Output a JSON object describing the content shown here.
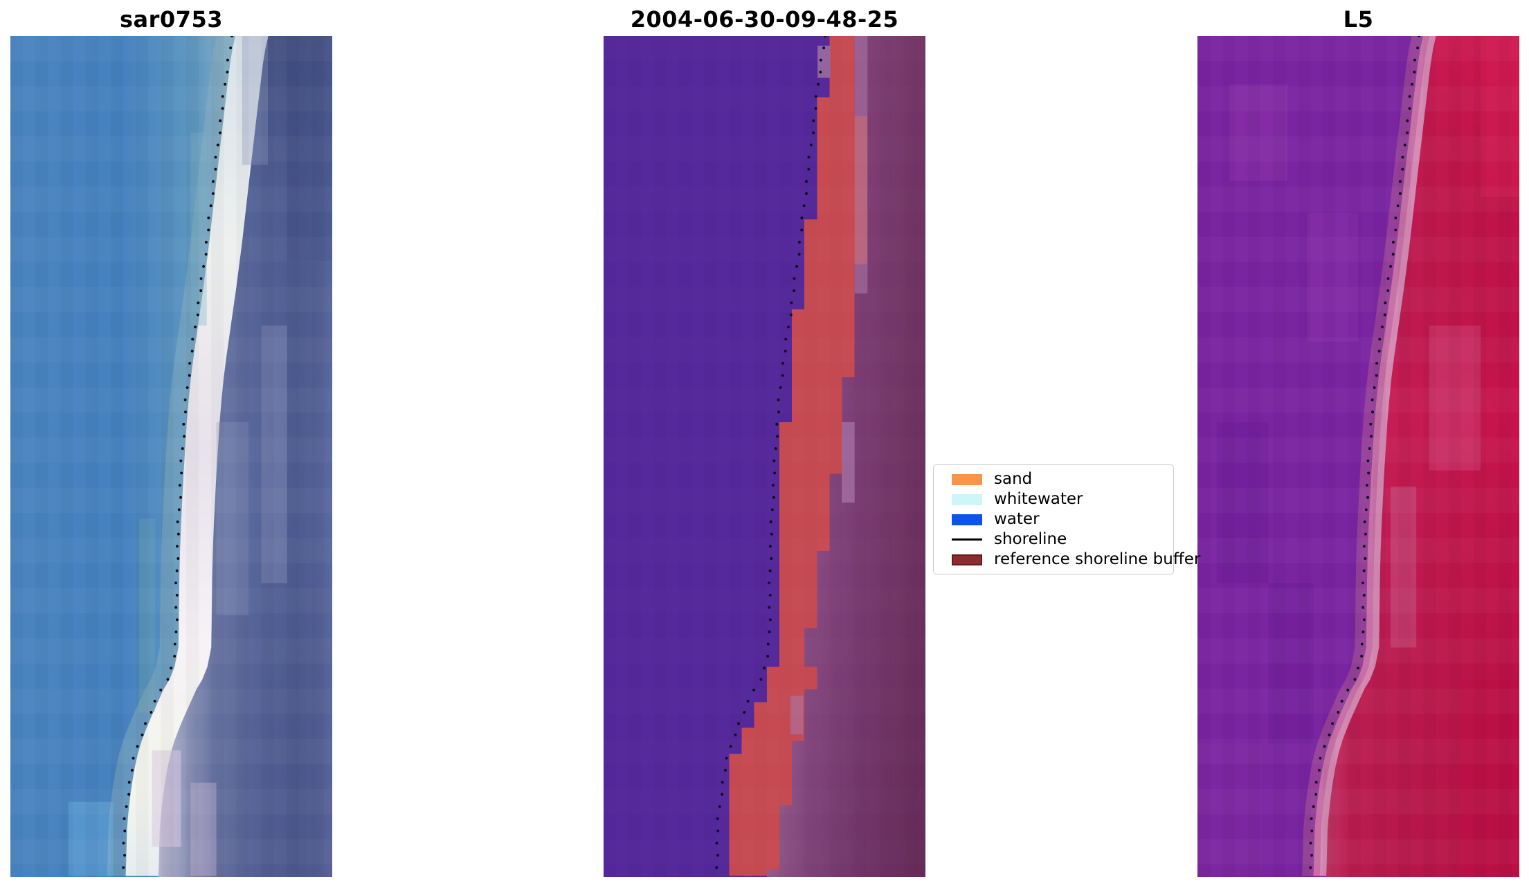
{
  "figure": {
    "background": "#ffffff",
    "panels": [
      {
        "title": "sar0753"
      },
      {
        "title": "2004-06-30-09-48-25"
      },
      {
        "title": "L5"
      }
    ],
    "legend": {
      "items": [
        {
          "label": "sand",
          "type": "patch",
          "color": "#f7964a"
        },
        {
          "label": "whitewater",
          "type": "patch",
          "color": "#cdf6f8"
        },
        {
          "label": "water",
          "type": "patch",
          "color": "#0b53e9"
        },
        {
          "label": "shoreline",
          "type": "line",
          "color": "#000000"
        },
        {
          "label": "reference shoreline buffer",
          "type": "patch",
          "color": "#8d2c2e",
          "edge_color": "#641d1f"
        }
      ]
    }
  },
  "chart_data": {
    "type": "image",
    "description": "Three co-registered coastal image panels (SAR scene sar0753, classified scene 2004-06-30-09-48-25, Landsat-5 scene L5) sharing one mapped shoreline drawn as a black dotted line over each panel; the middle panel shows the reference shoreline buffer band over a purple classified water region; no axes or ticks are drawn.",
    "panel_titles": [
      "sar0753",
      "2004-06-30-09-48-25",
      "L5"
    ],
    "legend_entries": [
      "sand",
      "whitewater",
      "water",
      "shoreline",
      "reference shoreline buffer"
    ],
    "palette": {
      "sar_water": "#4583c0",
      "sar_beach_band": "#f0f0f2",
      "sar_land": "#5a69a0",
      "classified_water": "#55289b",
      "reference_buffer_fill": "#c74a52",
      "classified_land_mauve": "#8a4782",
      "l5_water_purple": "#7a24a2",
      "l5_transition_pink": "#c76fa6",
      "l5_land_crimson": "#c61b53",
      "shoreline_dots": "#0b0b16"
    },
    "shoreline_points": [
      [
        69.1,
        0
      ],
      [
        68.2,
        4
      ],
      [
        67.4,
        9
      ],
      [
        66.8,
        14
      ],
      [
        66.2,
        19
      ],
      [
        65.5,
        25
      ],
      [
        64.8,
        31
      ],
      [
        64.1,
        37
      ],
      [
        63.4,
        43
      ],
      [
        62.6,
        50
      ],
      [
        61.8,
        57
      ],
      [
        61.0,
        64
      ],
      [
        60.1,
        71
      ],
      [
        59.2,
        78
      ],
      [
        58.2,
        85
      ],
      [
        57.2,
        92
      ],
      [
        56.2,
        99
      ],
      [
        55.3,
        106
      ],
      [
        54.6,
        113
      ],
      [
        54.0,
        120
      ],
      [
        53.5,
        128
      ],
      [
        53.0,
        136
      ],
      [
        52.6,
        144
      ],
      [
        52.2,
        152
      ],
      [
        51.9,
        160
      ],
      [
        51.7,
        168
      ],
      [
        51.6,
        176
      ],
      [
        51.5,
        184
      ],
      [
        51.4,
        190
      ],
      [
        50.2,
        196
      ],
      [
        48.6,
        200
      ],
      [
        46.8,
        203
      ],
      [
        45.0,
        207
      ],
      [
        43.2,
        211
      ],
      [
        41.5,
        215
      ],
      [
        40.0,
        219
      ],
      [
        38.8,
        223
      ],
      [
        37.9,
        227
      ],
      [
        37.2,
        231
      ],
      [
        36.6,
        235
      ],
      [
        36.1,
        239
      ],
      [
        35.7,
        243
      ],
      [
        35.4,
        247
      ],
      [
        35.3,
        251
      ],
      [
        35.2,
        255
      ],
      [
        35.1,
        259
      ],
      [
        35.0,
        261
      ]
    ],
    "buffer_half_widths": [
      [
        0,
        7
      ],
      [
        40,
        16
      ],
      [
        90,
        18
      ],
      [
        130,
        18
      ],
      [
        170,
        12
      ],
      [
        185,
        9
      ],
      [
        200,
        14
      ],
      [
        225,
        19
      ],
      [
        245,
        17
      ],
      [
        261,
        15
      ]
    ]
  }
}
